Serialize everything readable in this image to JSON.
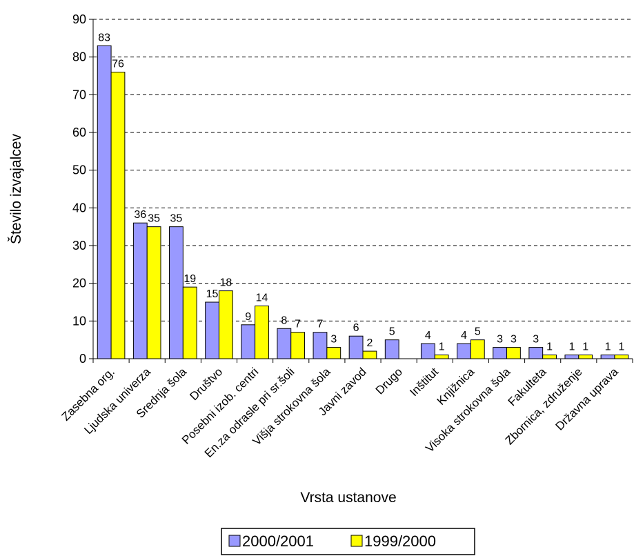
{
  "chart_data": {
    "type": "bar",
    "title": "",
    "xlabel": "Vrsta ustanove",
    "ylabel": "Število izvajalcev",
    "ylim": [
      0,
      90
    ],
    "yticks": [
      0,
      10,
      20,
      30,
      40,
      50,
      60,
      70,
      80,
      90
    ],
    "grid": true,
    "legend_position": "bottom",
    "categories": [
      "Zasebna org.",
      "Ljudska univerza",
      "Srednja šola",
      "Društvo",
      "Posebni izob. centri",
      "En.za odrasle pri sr.šoli",
      "Višja strokovna šola",
      "Javni zavod",
      "Drugo",
      "Inštitut",
      "Knjižnica",
      "Visoka strokovna šola",
      "Fakulteta",
      "Zbornica, združenje",
      "Državna uprava"
    ],
    "series": [
      {
        "name": "2000/2001",
        "color": "#9999ff",
        "values": [
          83,
          36,
          35,
          15,
          9,
          8,
          7,
          6,
          5,
          4,
          4,
          3,
          3,
          1,
          1
        ]
      },
      {
        "name": "1999/2000",
        "color": "#ffff00",
        "values": [
          76,
          35,
          19,
          18,
          14,
          7,
          3,
          2,
          null,
          1,
          5,
          3,
          1,
          1,
          1
        ]
      }
    ]
  }
}
